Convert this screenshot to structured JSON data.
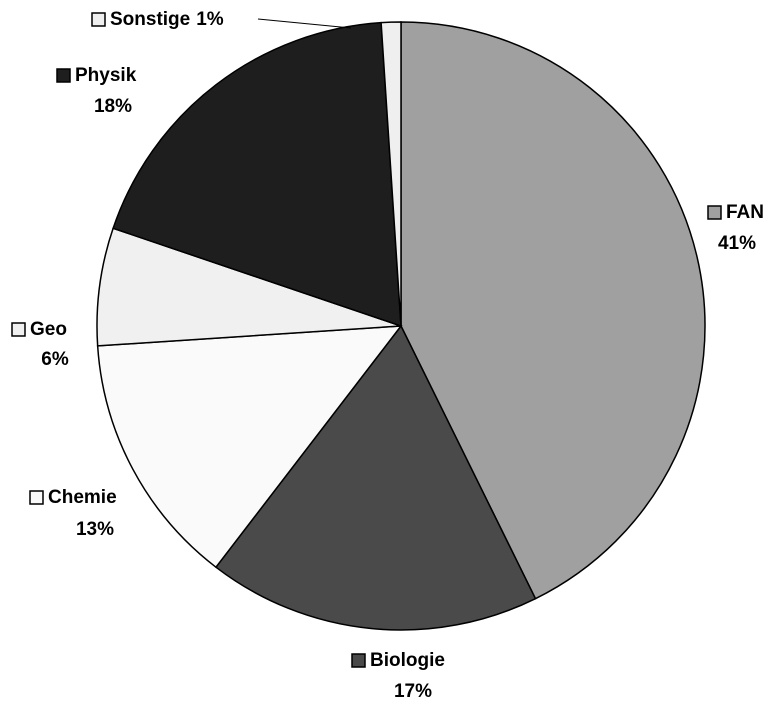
{
  "chart_data": {
    "type": "pie",
    "categories": [
      "FAN",
      "Biologie",
      "Chemie",
      "Geo",
      "Physik",
      "Sonstige"
    ],
    "values": [
      41,
      17,
      13,
      6,
      18,
      1
    ],
    "value_labels": [
      "41%",
      "17%",
      "13%",
      "6%",
      "18%",
      "1%"
    ],
    "colors": [
      "#a0a0a0",
      "#4a4a4a",
      "#fafafa",
      "#f0f0f0",
      "#1e1e1e",
      "#efefef"
    ]
  }
}
